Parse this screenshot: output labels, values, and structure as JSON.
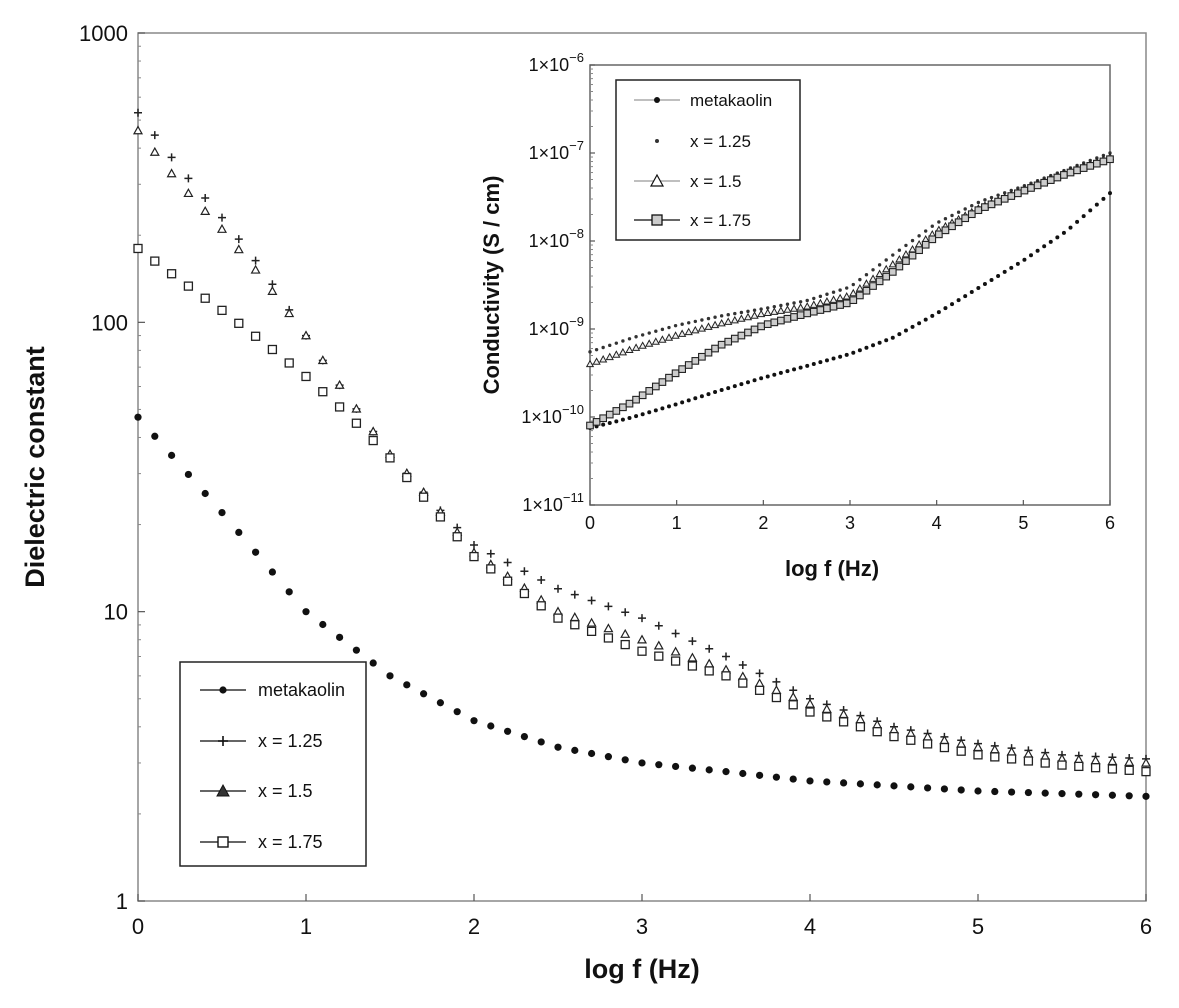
{
  "chart_data": [
    {
      "type": "scatter",
      "title": "",
      "xlabel": "log f (Hz)",
      "ylabel": "Dielectric constant",
      "xlim": [
        0,
        6
      ],
      "ylim": [
        1,
        1000
      ],
      "yscale": "log",
      "xticks": [
        "0",
        "1",
        "2",
        "3",
        "4",
        "5",
        "6"
      ],
      "yticks": [
        "1",
        "10",
        "100",
        "1000"
      ],
      "legend_position": "bottom-left",
      "series": [
        {
          "name": "metakaolin",
          "marker": "filled-circle",
          "x": [
            0,
            0.5,
            1,
            1.5,
            2,
            2.5,
            3,
            3.5,
            4,
            4.5,
            5,
            5.5,
            6
          ],
          "y": [
            47,
            22,
            10,
            6,
            4.2,
            3.4,
            3.0,
            2.8,
            2.6,
            2.5,
            2.4,
            2.35,
            2.3
          ]
        },
        {
          "name": "x = 1.25",
          "marker": "plus",
          "x": [
            0,
            0.25,
            0.5,
            0.75,
            1,
            1.25,
            1.5,
            1.75,
            2,
            2.5,
            3,
            3.5,
            4,
            4.5,
            5,
            5.5,
            6
          ],
          "y": [
            530,
            340,
            230,
            150,
            90,
            55,
            35,
            24,
            17,
            12,
            9.5,
            7.0,
            5.0,
            4.0,
            3.5,
            3.2,
            3.1
          ]
        },
        {
          "name": "x = 1.5",
          "marker": "triangle",
          "x": [
            0,
            0.25,
            0.5,
            0.75,
            1,
            1.25,
            1.5,
            1.75,
            2,
            2.5,
            3,
            3.5,
            4,
            4.5,
            5,
            5.5,
            6
          ],
          "y": [
            460,
            300,
            210,
            140,
            90,
            55,
            35,
            24,
            16,
            10,
            8.0,
            6.3,
            4.8,
            3.9,
            3.4,
            3.1,
            3.0
          ]
        },
        {
          "name": "x = 1.75",
          "marker": "open-square",
          "x": [
            0,
            0.25,
            0.5,
            0.75,
            1,
            1.25,
            1.5,
            1.75,
            2,
            2.5,
            3,
            3.5,
            4,
            4.5,
            5,
            5.5,
            6
          ],
          "y": [
            180,
            140,
            110,
            85,
            65,
            48,
            34,
            23,
            15.5,
            9.5,
            7.3,
            6.0,
            4.5,
            3.7,
            3.2,
            2.95,
            2.8
          ]
        }
      ]
    },
    {
      "type": "scatter",
      "title": "",
      "xlabel": "log f (Hz)",
      "ylabel": "Conductivity (S / cm)",
      "xlim": [
        0,
        6
      ],
      "ylim": [
        1e-11,
        1e-06
      ],
      "yscale": "log",
      "xticks": [
        "0",
        "1",
        "2",
        "3",
        "4",
        "5",
        "6"
      ],
      "yticks": [
        {
          "mant": "1×10",
          "exp": "−11"
        },
        {
          "mant": "1×10",
          "exp": "−10"
        },
        {
          "mant": "1×10",
          "exp": "−9"
        },
        {
          "mant": "1×10",
          "exp": "−8"
        },
        {
          "mant": "1×10",
          "exp": "−7"
        },
        {
          "mant": "1×10",
          "exp": "−6"
        }
      ],
      "legend_position": "top-left",
      "series": [
        {
          "name": "metakaolin",
          "marker": "filled-circle",
          "x": [
            0,
            0.5,
            1,
            1.5,
            2,
            2.5,
            3,
            3.5,
            4,
            4.5,
            5,
            5.5,
            6
          ],
          "y": [
            7.5e-11,
            1e-10,
            1.4e-10,
            2e-10,
            2.8e-10,
            3.8e-10,
            5.2e-10,
            8e-10,
            1.5e-09,
            3e-09,
            6e-09,
            1.3e-08,
            3.5e-08
          ]
        },
        {
          "name": "x = 1.25",
          "marker": "dot",
          "x": [
            0,
            0.5,
            1,
            1.5,
            2,
            2.5,
            3,
            3.5,
            4,
            4.5,
            5,
            5.5,
            6
          ],
          "y": [
            5.5e-10,
            8e-10,
            1.1e-09,
            1.4e-09,
            1.7e-09,
            2.1e-09,
            3e-09,
            7e-09,
            1.6e-08,
            2.8e-08,
            4.2e-08,
            6.5e-08,
            1e-07
          ]
        },
        {
          "name": "x = 1.5",
          "marker": "triangle",
          "x": [
            0,
            0.5,
            1,
            1.5,
            2,
            2.5,
            3,
            3.5,
            4,
            4.5,
            5,
            5.5,
            6
          ],
          "y": [
            4e-10,
            6e-10,
            8.5e-10,
            1.15e-09,
            1.5e-09,
            1.8e-09,
            2.4e-09,
            5.5e-09,
            1.3e-08,
            2.4e-08,
            3.8e-08,
            6e-08,
            9e-08
          ]
        },
        {
          "name": "x = 1.75",
          "marker": "open-square",
          "x": [
            0,
            0.5,
            1,
            1.5,
            2,
            2.5,
            3,
            3.5,
            4,
            4.5,
            5,
            5.5,
            6
          ],
          "y": [
            8e-11,
            1.5e-10,
            3.2e-10,
            6.5e-10,
            1.1e-09,
            1.5e-09,
            2e-09,
            4.5e-09,
            1.15e-08,
            2.3e-08,
            3.7e-08,
            5.8e-08,
            8.5e-08
          ]
        }
      ]
    }
  ]
}
